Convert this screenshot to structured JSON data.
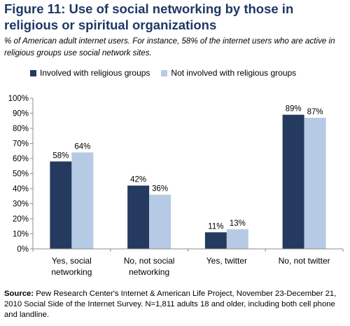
{
  "title": "Figure 11: Use of social networking by those in religious or spiritual organizations",
  "subtitle": "% of American adult internet users. For instance, 58% of the internet users who are active in religious groups use social network sites.",
  "source": {
    "label": "Source:",
    "text": "Pew Research Center's Internet & American Life Project, November 23-December 21, 2010 Social Side of the Internet Survey. N=1,811 adults 18 and older, including both cell phone and landline."
  },
  "chart_data": {
    "type": "bar",
    "categories": [
      [
        "Yes, social",
        "networking"
      ],
      [
        "No, not social",
        "networking"
      ],
      [
        "Yes, twitter"
      ],
      [
        "No, not twitter"
      ]
    ],
    "series": [
      {
        "name": "Involved with religious groups",
        "color": "#243a5e",
        "values": [
          58,
          42,
          11,
          89
        ],
        "labels": [
          "58%",
          "42%",
          "11%",
          "89%"
        ]
      },
      {
        "name": "Not involved with religious groups",
        "color": "#b7cae5",
        "values": [
          64,
          36,
          13,
          87
        ],
        "labels": [
          "64%",
          "36%",
          "13%",
          "87%"
        ]
      }
    ],
    "ylim": [
      0,
      100
    ],
    "yticks": [
      "0%",
      "10%",
      "20%",
      "30%",
      "40%",
      "50%",
      "60%",
      "70%",
      "80%",
      "90%",
      "100%"
    ],
    "grid": false,
    "legend_position": "top"
  }
}
